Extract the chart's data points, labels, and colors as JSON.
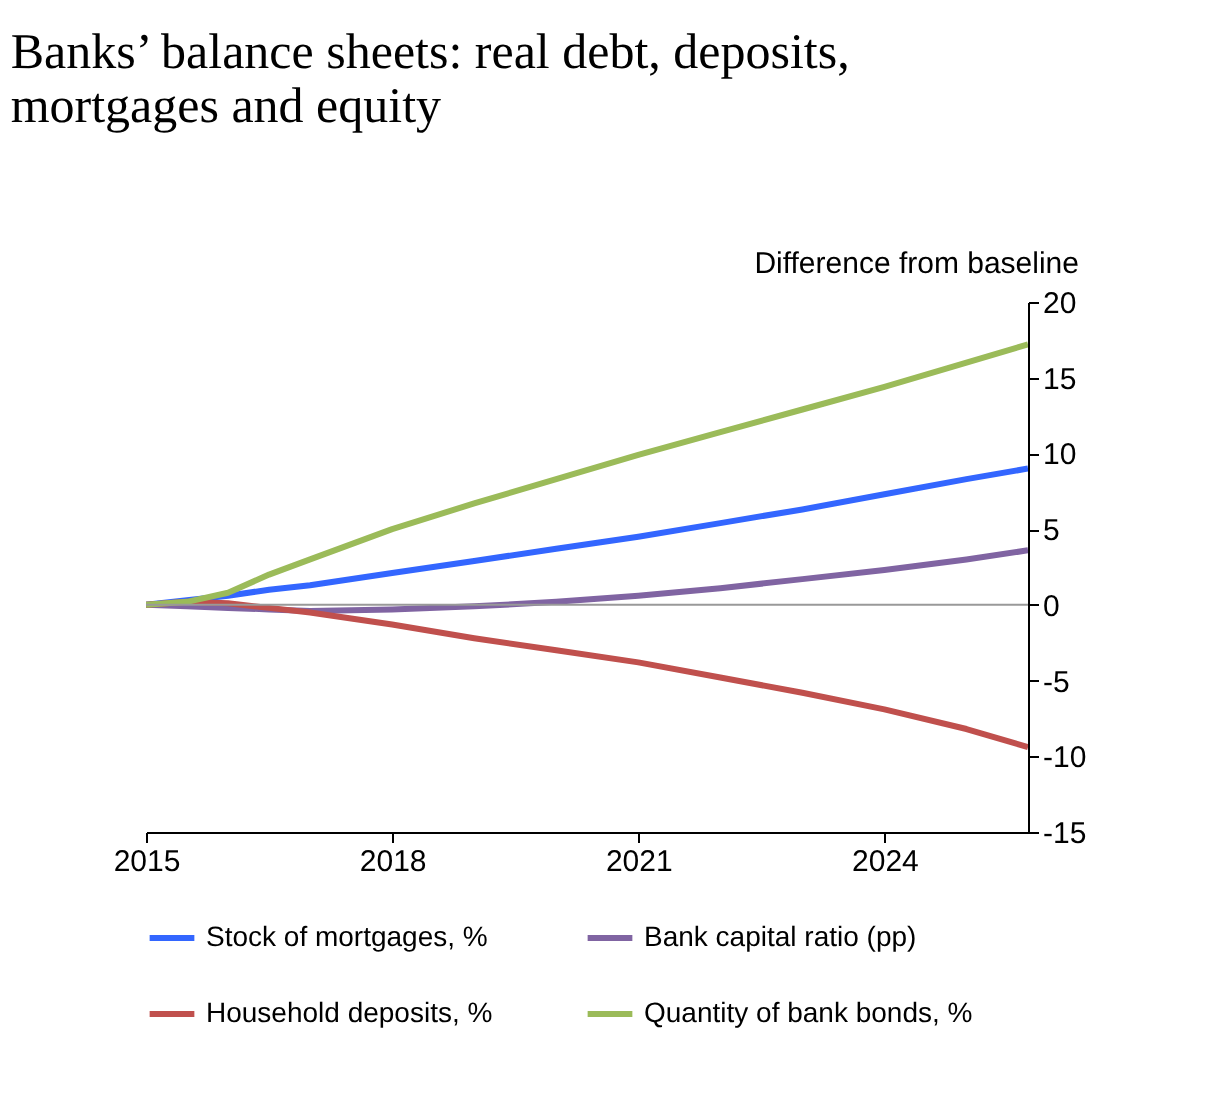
{
  "chart_data": {
    "type": "line",
    "title": [
      "Banks’ balance sheets: real debt, deposits,",
      "mortgages and equity"
    ],
    "ylabel": "Difference from baseline",
    "x": [
      2015,
      2015.5,
      2016,
      2016.5,
      2017,
      2018,
      2019,
      2020,
      2021,
      2022,
      2023,
      2024,
      2025,
      2025.75
    ],
    "series": [
      {
        "name": "Stock of mortgages, %",
        "color": "#3366ff",
        "values": [
          0,
          0.3,
          0.6,
          1.0,
          1.3,
          2.1,
          2.9,
          3.7,
          4.5,
          5.4,
          6.3,
          7.3,
          8.3,
          9.0
        ]
      },
      {
        "name": "Bank capital ratio (pp)",
        "color": "#8064a2",
        "values": [
          0,
          -0.1,
          -0.2,
          -0.3,
          -0.4,
          -0.3,
          -0.1,
          0.2,
          0.6,
          1.1,
          1.7,
          2.3,
          3.0,
          3.6
        ]
      },
      {
        "name": "Household deposits, %",
        "color": "#c0504d",
        "values": [
          0,
          0.2,
          0.1,
          -0.2,
          -0.5,
          -1.3,
          -2.2,
          -3.0,
          -3.8,
          -4.8,
          -5.8,
          -6.9,
          -8.2,
          -9.4
        ]
      },
      {
        "name": "Quantity of bank bonds, %",
        "color": "#9bbb59",
        "values": [
          0,
          0.2,
          0.8,
          2.0,
          3.0,
          5.0,
          6.7,
          8.3,
          9.9,
          11.4,
          12.9,
          14.4,
          16.0,
          17.2
        ]
      }
    ],
    "xlim": [
      2015,
      2025.75
    ],
    "xticks": [
      2015,
      2018,
      2021,
      2024
    ],
    "ylim": [
      -15,
      20
    ],
    "yticks": [
      -15,
      -10,
      -5,
      0,
      5,
      10,
      15,
      20
    ],
    "ref_lines": [
      {
        "axis": "y",
        "value": 0,
        "color": "#999999"
      }
    ],
    "grid": false,
    "legend": "bottom",
    "line_style": "solid",
    "marker": "none"
  }
}
